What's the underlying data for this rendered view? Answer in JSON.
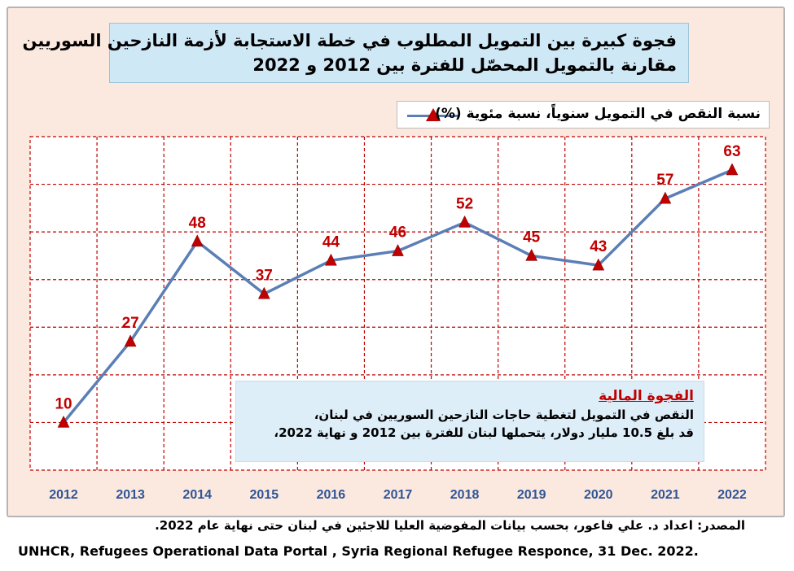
{
  "title": {
    "line1": "فجوة كبيرة بين التمويل المطلوب في خطة الاستجابة لأزمة النازحين السوريين",
    "line2": "مقارنة بالتمويل المحصّل للفترة بين 2012 و 2022"
  },
  "chart_data": {
    "type": "line",
    "x": [
      "2012",
      "2013",
      "2014",
      "2015",
      "2016",
      "2017",
      "2018",
      "2019",
      "2020",
      "2021",
      "2022"
    ],
    "series": [
      {
        "name": "نسبة النقص في التمويل سنوياً، نسبة مئوية (%)",
        "values": [
          10,
          27,
          48,
          37,
          44,
          46,
          52,
          45,
          43,
          57,
          63
        ],
        "color": "#5b7fb5",
        "marker": "triangle",
        "marker_color": "#c00000"
      }
    ],
    "data_label_color": "#c00000",
    "x_tick_color": "#2f5597",
    "grid_color": "#c00000",
    "grid_style": "dashed",
    "y_axis_labels_shown": false,
    "ylim": [
      0,
      70
    ],
    "legend_position": "top-right"
  },
  "note": {
    "title": "الفجوة المالية",
    "line1": "النقص في التمويل لتغطية حاجات النازحين السوريين في لبنان،",
    "line2": "قد بلغ 10.5 مليار دولار، يتحملها لبنان للفترة بين 2012 و نهاية 2022،"
  },
  "source": {
    "arabic": "المصدر: اعداد د. علي فاعور، بحسب بيانات المفوضية العليا للاجئين في لبنان حتى نهاية عام 2022.",
    "english": "UNHCR, Refugees Operational Data Portal , Syria Regional Refugee Responce, 31 Dec. 2022."
  },
  "colors": {
    "background_panel": "#fbe9df",
    "title_box": "#cfe8f5",
    "note_box": "#deeef9",
    "accent_red": "#c00000",
    "line_blue": "#5b7fb5"
  }
}
